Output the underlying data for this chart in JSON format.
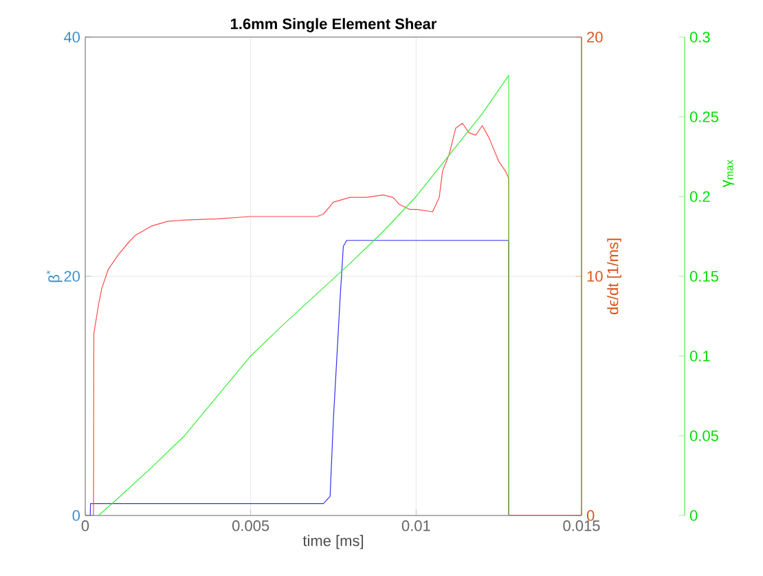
{
  "chart_data": {
    "type": "line",
    "title": "1.6mm Single Element Shear",
    "xlabel": "time [ms]",
    "ylabel": "β$^{*}$",
    "y2label": "dϵ/dt [1/ms]",
    "y3label": "γ$_{max}$",
    "xlim": [
      0,
      0.015
    ],
    "xticks": [
      0,
      0.005,
      0.01,
      0.015
    ],
    "ylim": [
      0,
      40
    ],
    "yticks": [
      0,
      20,
      40
    ],
    "y2lim": [
      0,
      20
    ],
    "y2ticks": [
      0,
      10,
      20
    ],
    "y3lim": [
      0,
      0.3
    ],
    "y3ticks": [
      0,
      0.05,
      0.1,
      0.15,
      0.2,
      0.25,
      0.3
    ],
    "grid": true,
    "series": [
      {
        "color": "#3030f0",
        "x": [
          0,
          0.00015,
          0.00016,
          0.0072,
          0.0074,
          0.0075,
          0.0077,
          0.0078,
          0.0079,
          0.0085,
          0.0128,
          0.0128,
          0.015
        ],
        "values": [
          0,
          0,
          1,
          1,
          1.6,
          8,
          18,
          22.5,
          23,
          23,
          23,
          0,
          0
        ]
      },
      {
        "color": "#ff4a4a",
        "axis": "y2",
        "x": [
          0,
          0.00025,
          0.00026,
          0.0004,
          0.0005,
          0.0007,
          0.001,
          0.0013,
          0.0015,
          0.002,
          0.0025,
          0.003,
          0.004,
          0.005,
          0.006,
          0.007,
          0.0072,
          0.0075,
          0.008,
          0.0085,
          0.009,
          0.0093,
          0.0095,
          0.0098,
          0.01,
          0.0105,
          0.0107,
          0.0108,
          0.011,
          0.0112,
          0.0114,
          0.0116,
          0.0118,
          0.012,
          0.0122,
          0.0125,
          0.0127,
          0.0128,
          0.0128,
          0.015
        ],
        "values": [
          0,
          0,
          7.6,
          8.8,
          9.5,
          10.3,
          10.9,
          11.4,
          11.7,
          12.1,
          12.3,
          12.35,
          12.4,
          12.5,
          12.5,
          12.5,
          12.6,
          13.1,
          13.3,
          13.3,
          13.4,
          13.3,
          13.0,
          12.8,
          12.8,
          12.7,
          13.3,
          14.4,
          15.1,
          16.2,
          16.4,
          16.0,
          15.9,
          16.3,
          15.8,
          14.8,
          14.4,
          14.1,
          0,
          0
        ]
      },
      {
        "color": "#33ee33",
        "axis": "y3",
        "x": [
          0.0004,
          0.001,
          0.002,
          0.003,
          0.004,
          0.005,
          0.006,
          0.007,
          0.008,
          0.009,
          0.01,
          0.011,
          0.012,
          0.0128,
          0.0128
        ],
        "values": [
          0,
          0.011,
          0.03,
          0.05,
          0.075,
          0.1,
          0.12,
          0.139,
          0.158,
          0.178,
          0.2,
          0.226,
          0.252,
          0.276,
          0
        ]
      }
    ]
  }
}
